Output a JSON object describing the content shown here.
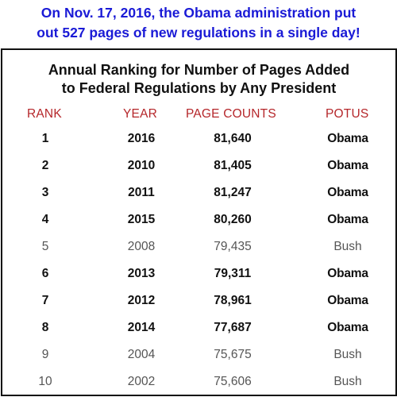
{
  "headline": {
    "line1": "On Nov. 17, 2016, the Obama administration put",
    "line2": "out 527 pages of new regulations in a single day!"
  },
  "table": {
    "title_line1": "Annual Ranking for Number of Pages Added",
    "title_line2": "to Federal Regulations by Any President",
    "headers": {
      "rank": "RANK",
      "year": "YEAR",
      "pages": "PAGE COUNTS",
      "potus": "POTUS"
    }
  },
  "chart_data": {
    "type": "table",
    "title": "Annual Ranking for Number of Pages Added to Federal Regulations by Any President",
    "columns": [
      "RANK",
      "YEAR",
      "PAGE COUNTS",
      "POTUS"
    ],
    "rows": [
      {
        "rank": "1",
        "year": "2016",
        "pages": "81,640",
        "potus": "Obama",
        "bold": true
      },
      {
        "rank": "2",
        "year": "2010",
        "pages": "81,405",
        "potus": "Obama",
        "bold": true
      },
      {
        "rank": "3",
        "year": "2011",
        "pages": "81,247",
        "potus": "Obama",
        "bold": true
      },
      {
        "rank": "4",
        "year": "2015",
        "pages": "80,260",
        "potus": "Obama",
        "bold": true
      },
      {
        "rank": "5",
        "year": "2008",
        "pages": "79,435",
        "potus": "Bush",
        "bold": false
      },
      {
        "rank": "6",
        "year": "2013",
        "pages": "79,311",
        "potus": "Obama",
        "bold": true
      },
      {
        "rank": "7",
        "year": "2012",
        "pages": "78,961",
        "potus": "Obama",
        "bold": true
      },
      {
        "rank": "8",
        "year": "2014",
        "pages": "77,687",
        "potus": "Obama",
        "bold": true
      },
      {
        "rank": "9",
        "year": "2004",
        "pages": "75,675",
        "potus": "Bush",
        "bold": false
      },
      {
        "rank": "10",
        "year": "2002",
        "pages": "75,606",
        "potus": "Bush",
        "bold": false
      }
    ]
  },
  "colors": {
    "headline": "#1a1ad6",
    "header_text": "#b5262a",
    "bold_text": "#111111",
    "normal_text": "#555555",
    "border": "#111111"
  }
}
